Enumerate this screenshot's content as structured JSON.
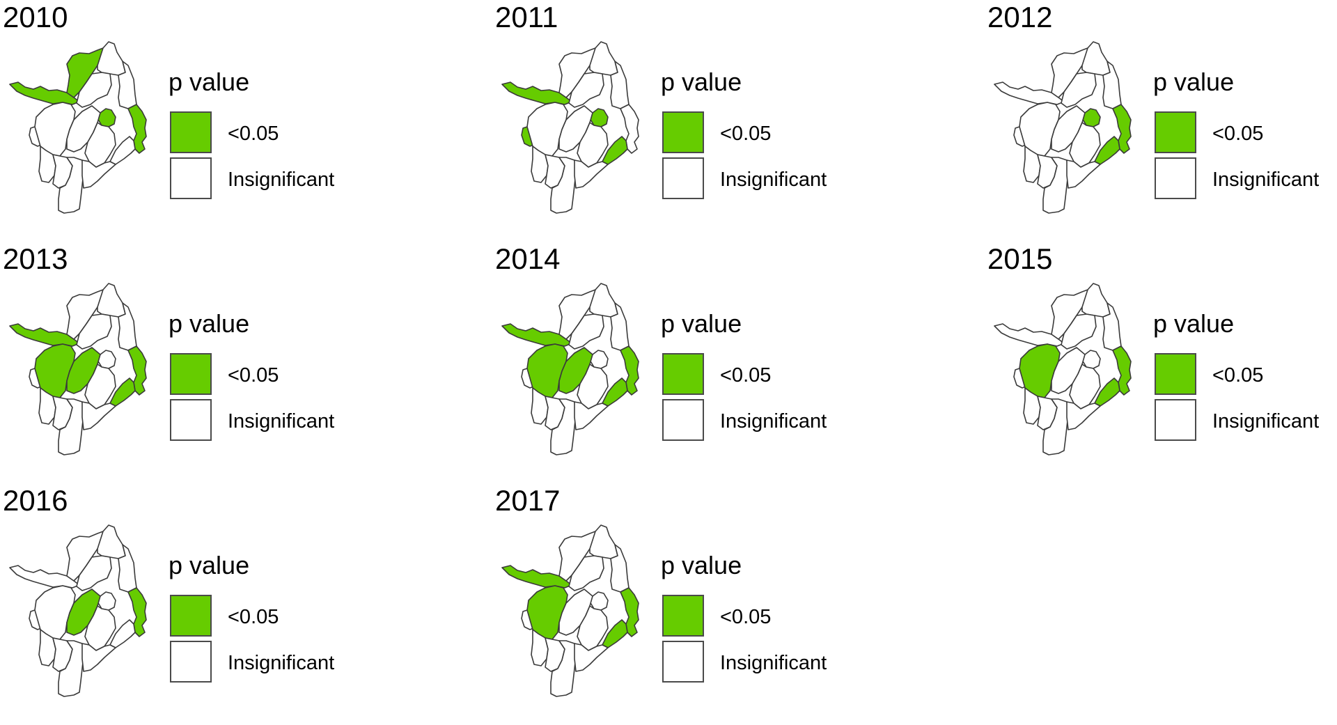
{
  "legend": {
    "title": "p value",
    "items": [
      {
        "label": "<0.05",
        "color": "#66cc00"
      },
      {
        "label": "Insignificant",
        "color": "#ffffff"
      }
    ]
  },
  "colors": {
    "significant": "#66cc00",
    "insignificant": "#ffffff",
    "outline": "#3a3a3a"
  },
  "districts": [
    "NW-strip",
    "N-upper",
    "N-top",
    "NE",
    "C-mid",
    "C-east-small",
    "E-coastal",
    "SE-strip",
    "W-small",
    "W-large",
    "C-mid2",
    "C-south",
    "SW-1",
    "SW-2",
    "S-long",
    "C-lower"
  ],
  "panels": [
    {
      "year": "2010",
      "significant": [
        "NW-strip",
        "N-upper",
        "C-east-small",
        "E-coastal"
      ]
    },
    {
      "year": "2011",
      "significant": [
        "NW-strip",
        "W-small",
        "SE-strip",
        "C-east-small"
      ]
    },
    {
      "year": "2012",
      "significant": [
        "C-east-small",
        "SE-strip",
        "E-coastal"
      ]
    },
    {
      "year": "2013",
      "significant": [
        "NW-strip",
        "W-large",
        "C-mid2",
        "SE-strip",
        "E-coastal"
      ]
    },
    {
      "year": "2014",
      "significant": [
        "NW-strip",
        "W-large",
        "C-mid2",
        "SE-strip",
        "E-coastal"
      ]
    },
    {
      "year": "2015",
      "significant": [
        "W-large",
        "SE-strip",
        "E-coastal"
      ]
    },
    {
      "year": "2016",
      "significant": [
        "C-mid2",
        "E-coastal"
      ]
    },
    {
      "year": "2017",
      "significant": [
        "NW-strip",
        "W-large",
        "SE-strip",
        "E-coastal"
      ]
    }
  ]
}
